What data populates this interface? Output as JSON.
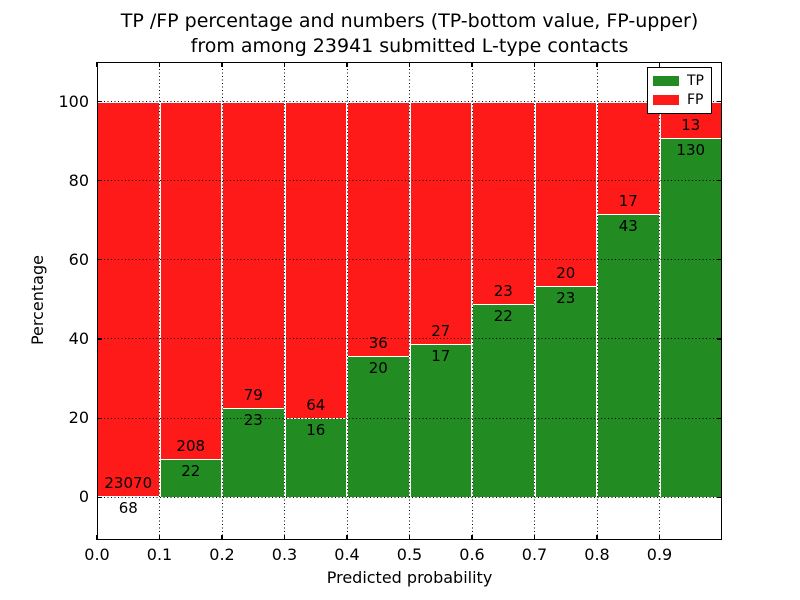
{
  "chart_data": {
    "type": "bar",
    "stacked": true,
    "title_line1": "TP /FP percentage and numbers (TP-bottom value, FP-upper)",
    "title_line2": "from among 23941 submitted L-type contacts",
    "title": "TP /FP percentage and numbers (TP-bottom value, FP-upper) from among 23941 submitted L-type contacts",
    "total_submitted": 23941,
    "xlabel": "Predicted probability",
    "ylabel": "Percentage",
    "xlim": [
      0,
      1.0
    ],
    "ylim": [
      -10.8,
      110
    ],
    "grid": true,
    "grid_linestyle": "dotted",
    "bin_width": 0.1,
    "bin_starts": [
      0.0,
      0.1,
      0.2,
      0.3,
      0.4,
      0.5,
      0.6,
      0.7,
      0.8,
      0.9
    ],
    "xtick_labels": [
      "0.0",
      "0.1",
      "0.2",
      "0.3",
      "0.4",
      "0.5",
      "0.6",
      "0.7",
      "0.8",
      "0.9"
    ],
    "ytick_values": [
      0,
      20,
      40,
      60,
      80,
      100
    ],
    "series": [
      {
        "name": "TP",
        "color": "#228b22",
        "counts": [
          68,
          22,
          23,
          16,
          20,
          17,
          22,
          23,
          43,
          130
        ]
      },
      {
        "name": "FP",
        "color": "#ff1a1a",
        "counts": [
          23070,
          208,
          79,
          64,
          36,
          27,
          23,
          20,
          17,
          13
        ]
      }
    ],
    "tp_percent": [
      0.29,
      9.57,
      22.55,
      20.0,
      35.71,
      38.64,
      48.89,
      53.49,
      71.67,
      90.91
    ],
    "bar_edge_color": "#ffffff",
    "legend": {
      "position": "upper right",
      "entries": [
        {
          "label": "TP",
          "color": "#228b22"
        },
        {
          "label": "FP",
          "color": "#ff1a1a"
        }
      ]
    }
  }
}
